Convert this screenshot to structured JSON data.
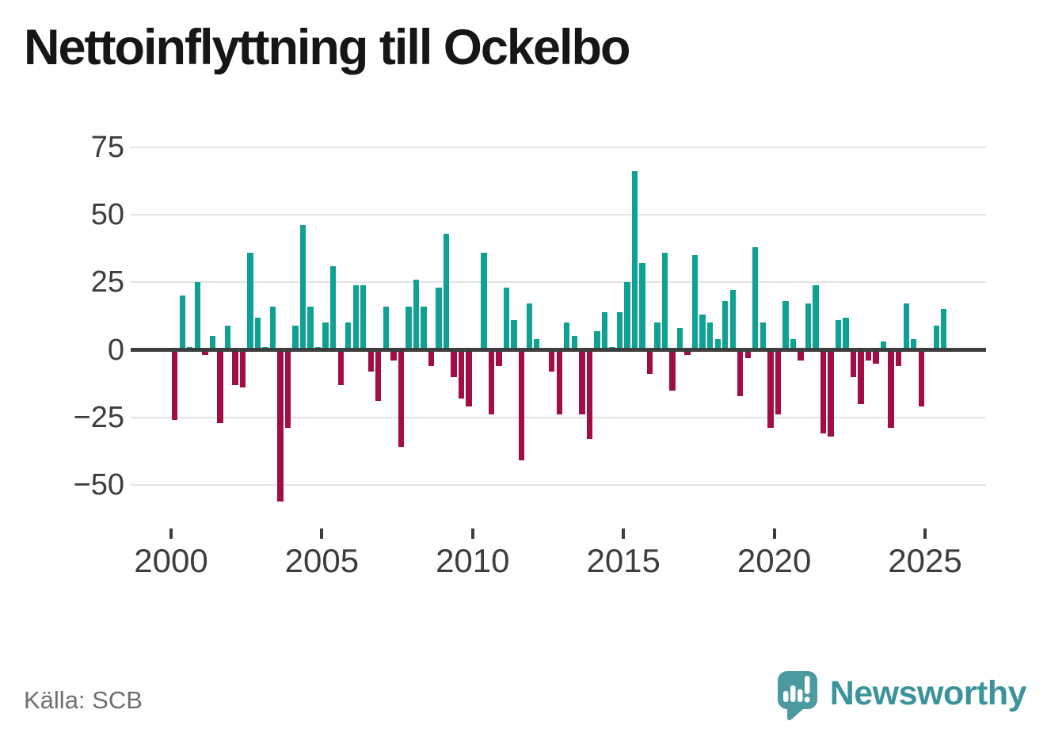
{
  "title": "Nettoinflyttning till Ockelbo",
  "source": "Källa: SCB",
  "branding": {
    "name": "Newsworthy"
  },
  "colors": {
    "positive_bar": "#0ea194",
    "negative_bar": "#a30d45",
    "gridline": "#e3e3e3",
    "axis": "#3d3d3d",
    "title_text": "#161616",
    "source_text": "#6f6f6f",
    "brand_teal": "#3b939b",
    "brand_icon": "#4a9aa0"
  },
  "chart_data": {
    "type": "bar",
    "title": "Nettoinflyttning till Ockelbo",
    "xlabel": "",
    "ylabel": "",
    "grid": "horizontal",
    "legend": "none",
    "ylim": [
      -62,
      76
    ],
    "y_ticks": [
      75,
      50,
      25,
      0,
      -25,
      -50
    ],
    "y_tick_labels": [
      "75",
      "50",
      "25",
      "0",
      "−25",
      "−50"
    ],
    "x_tick_years": [
      2000,
      2005,
      2010,
      2015,
      2020,
      2025
    ],
    "x_tick_labels": [
      "2000",
      "2005",
      "2010",
      "2015",
      "2020",
      "2025"
    ],
    "frequency": "quarterly",
    "start_period": "2000 Q1",
    "end_period": "2025 Q3",
    "values": [
      -26,
      20,
      1,
      25,
      -2,
      5,
      -27,
      9,
      -13,
      -14,
      36,
      12,
      1,
      16,
      -56,
      -29,
      9,
      46,
      16,
      1,
      10,
      31,
      -13,
      10,
      24,
      24,
      -8,
      -19,
      16,
      -4,
      -36,
      16,
      26,
      16,
      -6,
      23,
      43,
      -10,
      -18,
      -21,
      0,
      36,
      -24,
      -6,
      23,
      11,
      -41,
      17,
      4,
      0,
      -8,
      -24,
      10,
      5,
      -24,
      -33,
      7,
      14,
      1,
      14,
      25,
      66,
      32,
      -9,
      10,
      36,
      -15,
      8,
      -2,
      35,
      13,
      10,
      4,
      18,
      22,
      -17,
      -3,
      38,
      10,
      -29,
      -24,
      18,
      4,
      -4,
      17,
      24,
      -31,
      -32,
      11,
      12,
      -10,
      -20,
      -4,
      -5,
      3,
      -29,
      -6,
      17,
      4,
      -21,
      0,
      9,
      15
    ]
  }
}
